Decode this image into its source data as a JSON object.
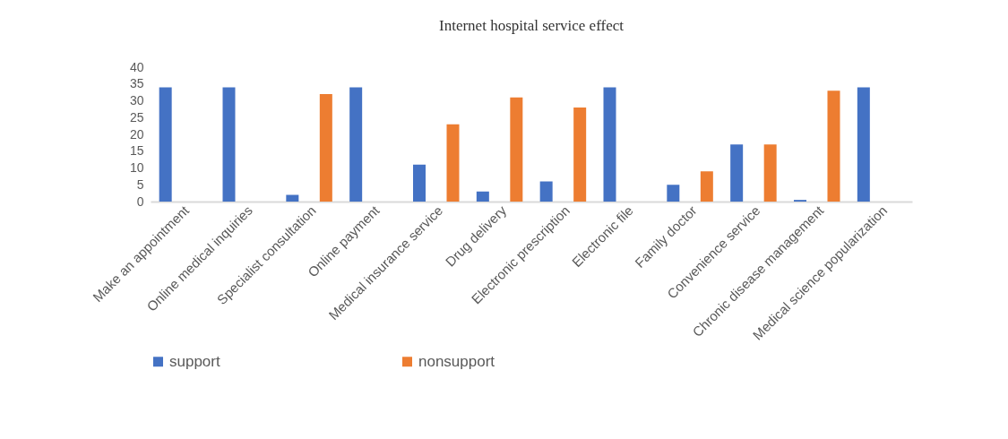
{
  "chart_data": {
    "type": "bar",
    "title": "Internet hospital service effect",
    "categories": [
      "Make an appointment",
      "Online medical inquiries",
      "Specialist consultation",
      "Online payment",
      "Medical insurance service",
      "Drug delivery",
      "Electronic prescription",
      "Electronic file",
      "Family doctor",
      "Convenience service",
      "Chronic disease management",
      "Medical science popularization"
    ],
    "series": [
      {
        "name": "support",
        "color": "#4472c4",
        "values": [
          34,
          34,
          2,
          34,
          11,
          3,
          6,
          34,
          5,
          17,
          0.5,
          34
        ]
      },
      {
        "name": "nonsupport",
        "color": "#ed7d31",
        "values": [
          0,
          0,
          32,
          0,
          23,
          31,
          28,
          0,
          9,
          17,
          33,
          0
        ]
      }
    ],
    "ylim": [
      0,
      40
    ],
    "yticks": [
      0,
      5,
      10,
      15,
      20,
      25,
      30,
      35,
      40
    ],
    "grid": false,
    "legend": "bottom"
  }
}
